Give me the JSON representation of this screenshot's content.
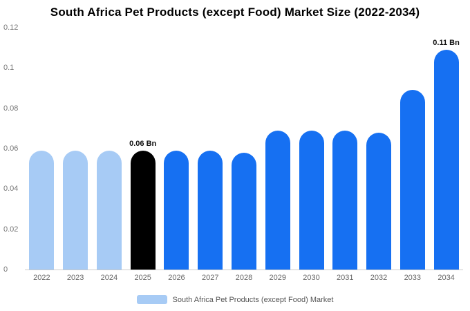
{
  "chart_data": {
    "type": "bar",
    "title": "South Africa Pet Products (except Food) Market Size (2022-2034)",
    "categories": [
      "2022",
      "2023",
      "2024",
      "2025",
      "2026",
      "2027",
      "2028",
      "2029",
      "2030",
      "2031",
      "2032",
      "2033",
      "2034"
    ],
    "values": [
      0.059,
      0.059,
      0.059,
      0.059,
      0.059,
      0.059,
      0.058,
      0.069,
      0.069,
      0.069,
      0.068,
      0.089,
      0.109
    ],
    "unit": "Bn",
    "ylim": [
      0,
      0.12
    ],
    "ytick_labels": [
      "0",
      "0.02",
      "0.04",
      "0.06",
      "0.08",
      "0.1",
      "0.12"
    ],
    "grid": false,
    "legend": "South Africa Pet Products (except Food) Market",
    "legend_position": "bottom",
    "legend_swatch_color": "#A7CBF5",
    "colors": {
      "historical": "#A7CBF5",
      "highlight": "#000000",
      "forecast": "#1670F2"
    },
    "bar_colors": [
      "#A7CBF5",
      "#A7CBF5",
      "#A7CBF5",
      "#000000",
      "#1670F2",
      "#1670F2",
      "#1670F2",
      "#1670F2",
      "#1670F2",
      "#1670F2",
      "#1670F2",
      "#1670F2",
      "#1670F2"
    ],
    "annotations": [
      {
        "index": 3,
        "text": "0.06 Bn"
      },
      {
        "index": 12,
        "text": "0.11 Bn"
      }
    ]
  }
}
